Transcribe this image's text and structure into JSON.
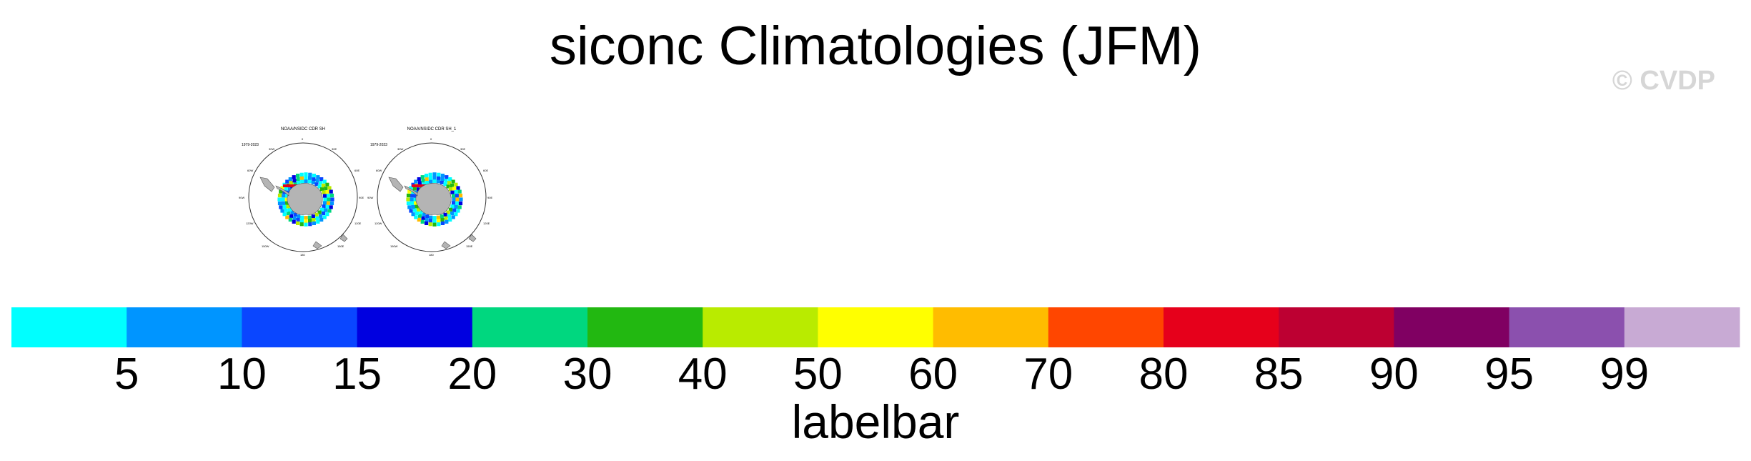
{
  "page": {
    "title": "siconc Climatologies (JFM)",
    "watermark": "© CVDP"
  },
  "panels": [
    {
      "title": "NOAA/NSIDC CDR SH",
      "period": "1979-2023"
    },
    {
      "title": "NOAA/NSIDC CDR SH_1",
      "period": "1979-2023"
    }
  ],
  "map_labels": {
    "lon_top": "0",
    "lon_bottom": "180",
    "lon_left": "90W",
    "lon_right": "90E",
    "lon_upper_left": "30W",
    "lon_upper_right": "30E",
    "lon_mid_left": "60W",
    "lon_mid_right": "60E",
    "lon_lower_left": "120W",
    "lon_lower_right": "120E",
    "lon_bottom_left": "150W",
    "lon_bottom_right": "150E"
  },
  "colors": {
    "land": "#b4b4b4",
    "ocean": "#ffffff"
  },
  "labelbar": {
    "title": "labelbar",
    "boundaries": [
      "5",
      "10",
      "15",
      "20",
      "30",
      "40",
      "50",
      "60",
      "70",
      "80",
      "85",
      "90",
      "95",
      "99"
    ],
    "colors": [
      "#00ffff",
      "#0095ff",
      "#0a46ff",
      "#0000e0",
      "#00d77f",
      "#22b811",
      "#b9eb00",
      "#ffff00",
      "#ffbc00",
      "#ff4600",
      "#e6001b",
      "#bd0032",
      "#800062",
      "#8b50ae",
      "#c8aad4"
    ]
  }
}
